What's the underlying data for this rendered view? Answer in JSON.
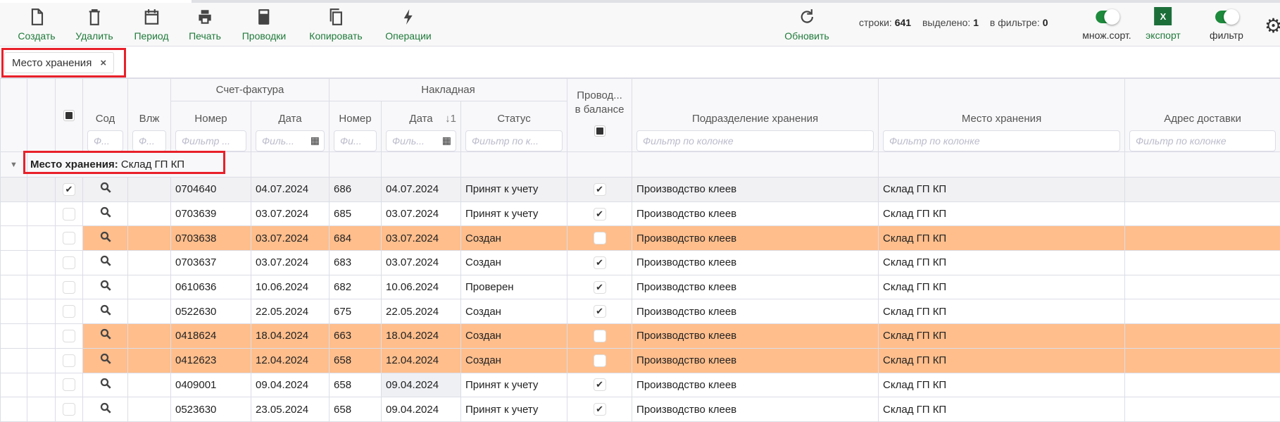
{
  "toolbar": {
    "buttons": [
      {
        "label": "Создать",
        "icon": "file-icon"
      },
      {
        "label": "Удалить",
        "icon": "trash-icon"
      },
      {
        "label": "Период",
        "icon": "calendar-icon"
      },
      {
        "label": "Печать",
        "icon": "printer-icon"
      },
      {
        "label": "Проводки",
        "icon": "calculator-icon"
      },
      {
        "label": "Копировать",
        "icon": "copy-icon"
      },
      {
        "label": "Операции",
        "icon": "lightning-icon"
      }
    ],
    "refresh": "Обновить",
    "stats": {
      "rows_label": "строки:",
      "rows": "641",
      "selected_label": "выделено:",
      "selected": "1",
      "filtered_label": "в фильтре:",
      "filtered": "0"
    },
    "multisort": {
      "label": "множ.сорт.",
      "on": true
    },
    "export": {
      "label": "экспорт",
      "icon_text": "X"
    },
    "filter": {
      "label": "фильтр",
      "on": true
    },
    "accent": "#1f7a3a"
  },
  "grouping_chip": {
    "label": "Место хранения",
    "close": "×"
  },
  "columns": {
    "invoice_group": "Счет-фактура",
    "waybill_group": "Накладная",
    "sod": "Сод",
    "vlzh": "Влж",
    "inv_num": "Номер",
    "inv_date": "Дата",
    "wb_num": "Номер",
    "wb_date": "Дата",
    "wb_sort": "↓1",
    "status": "Статус",
    "posted_1": "Провод...",
    "posted_2": "в балансе",
    "division": "Подразделение хранения",
    "storage": "Место хранения",
    "address": "Адрес доставки",
    "filters": {
      "sod": "Ф...",
      "vlzh": "Ф...",
      "inv_num": "Фильтр ...",
      "inv_date": "Филь...",
      "wb_num": "Фи...",
      "wb_date": "Филь...",
      "status": "Фильтр по к...",
      "division": "Фильтр по колонке",
      "storage": "Фильтр по колонке",
      "address": "Фильтр по колонке"
    }
  },
  "group_row": {
    "label": "Место хранения:",
    "value": "Склад ГП КП"
  },
  "rows": [
    {
      "checked": true,
      "inv_num": "0704640",
      "inv_date": "04.07.2024",
      "wb_num": "686",
      "wb_date": "04.07.2024",
      "status": "Принят к учету",
      "posted": true,
      "division": "Производство клеев",
      "storage": "Склад ГП КП",
      "highlight": false,
      "selected": true
    },
    {
      "checked": false,
      "inv_num": "0703639",
      "inv_date": "03.07.2024",
      "wb_num": "685",
      "wb_date": "03.07.2024",
      "status": "Принят к учету",
      "posted": true,
      "division": "Производство клеев",
      "storage": "Склад ГП КП",
      "highlight": false
    },
    {
      "checked": false,
      "inv_num": "0703638",
      "inv_date": "03.07.2024",
      "wb_num": "684",
      "wb_date": "03.07.2024",
      "status": "Создан",
      "posted": false,
      "division": "Производство клеев",
      "storage": "Склад ГП КП",
      "highlight": true
    },
    {
      "checked": false,
      "inv_num": "0703637",
      "inv_date": "03.07.2024",
      "wb_num": "683",
      "wb_date": "03.07.2024",
      "status": "Создан",
      "posted": true,
      "division": "Производство клеев",
      "storage": "Склад ГП КП",
      "highlight": false
    },
    {
      "checked": false,
      "inv_num": "0610636",
      "inv_date": "10.06.2024",
      "wb_num": "682",
      "wb_date": "10.06.2024",
      "status": "Проверен",
      "posted": true,
      "division": "Производство клеев",
      "storage": "Склад ГП КП",
      "highlight": false
    },
    {
      "checked": false,
      "inv_num": "0522630",
      "inv_date": "22.05.2024",
      "wb_num": "675",
      "wb_date": "22.05.2024",
      "status": "Создан",
      "posted": true,
      "division": "Производство клеев",
      "storage": "Склад ГП КП",
      "highlight": false
    },
    {
      "checked": false,
      "inv_num": "0418624",
      "inv_date": "18.04.2024",
      "wb_num": "663",
      "wb_date": "18.04.2024",
      "status": "Создан",
      "posted": false,
      "division": "Производство клеев",
      "storage": "Склад ГП КП",
      "highlight": true
    },
    {
      "checked": false,
      "inv_num": "0412623",
      "inv_date": "12.04.2024",
      "wb_num": "658",
      "wb_date": "12.04.2024",
      "status": "Создан",
      "posted": false,
      "division": "Производство клеев",
      "storage": "Склад ГП КП",
      "highlight": true
    },
    {
      "checked": false,
      "inv_num": "0409001",
      "inv_date": "09.04.2024",
      "wb_num": "658",
      "wb_date": "09.04.2024",
      "status": "Принят к учету",
      "posted": true,
      "division": "Производство клеев",
      "storage": "Склад ГП КП",
      "highlight": false,
      "focused_cell": "wb_date"
    },
    {
      "checked": false,
      "inv_num": "0523630",
      "inv_date": "23.05.2024",
      "wb_num": "658",
      "wb_date": "09.04.2024",
      "status": "Принят к учету",
      "posted": true,
      "division": "Производство клеев",
      "storage": "Склад ГП КП",
      "highlight": false
    }
  ],
  "colors": {
    "highlight_row": "#ffbe8c",
    "annotation_box": "#e8202a",
    "toggle_on": "#1d8a3c"
  }
}
